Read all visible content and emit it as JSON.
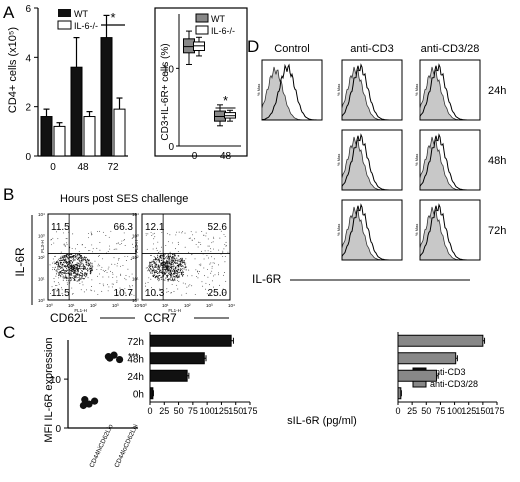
{
  "panel_letters": {
    "a": "A",
    "b": "B",
    "c": "C",
    "d": "D"
  },
  "chart_data": [
    {
      "id": "A1",
      "type": "bar",
      "categories": [
        "0",
        "48",
        "72"
      ],
      "series": [
        {
          "name": "WT",
          "color": "#111111",
          "values": [
            1.6,
            3.6,
            4.8
          ],
          "errors": [
            0.3,
            1.2,
            0.9
          ]
        },
        {
          "name": "IL-6-/-",
          "color": "#ffffff",
          "values": [
            1.2,
            1.6,
            1.9
          ],
          "errors": [
            0.15,
            0.2,
            0.45
          ]
        }
      ],
      "ylabel": "CD4+ cells (x10⁵)",
      "yticks": [
        "0",
        "2",
        "4",
        "6"
      ],
      "ylim": [
        0,
        6
      ],
      "significance": "*",
      "legend": "top-left"
    },
    {
      "id": "A2",
      "type": "boxplot",
      "categories": [
        "0",
        "48"
      ],
      "series": [
        {
          "name": "WT",
          "color": "#888888",
          "boxes": [
            [
              10.5,
              12,
              12.8,
              13.8,
              14.8
            ],
            [
              2.6,
              3.2,
              3.8,
              4.5,
              5.3
            ]
          ]
        },
        {
          "name": "IL-6-/-",
          "color": "#ffffff",
          "boxes": [
            [
              11.6,
              12.3,
              12.9,
              13.4,
              14.0
            ],
            [
              3.2,
              3.6,
              3.9,
              4.3,
              4.6
            ]
          ]
        }
      ],
      "ylabel": "CD3+IL-6R+ cells (%)",
      "yticks": [
        "0",
        "10"
      ],
      "ylim": [
        0,
        17
      ],
      "significance": "*",
      "legend": "top-right"
    },
    {
      "id": "B",
      "type": "scatter",
      "title": "Hours post SES challenge",
      "ylabel": "IL-6R",
      "fl_x": "FL1-H",
      "fl_y": "FL3-H",
      "plots": [
        {
          "xlabel": "CD62L",
          "quadrants": {
            "ul": "11.5",
            "ur": "66.3",
            "ll": "11.5",
            "lr": "10.7"
          }
        },
        {
          "xlabel": "CCR7",
          "quadrants": {
            "ul": "12.1",
            "ur": "52.6",
            "ll": "10.3",
            "lr": "25.0"
          }
        }
      ],
      "tick_labels": [
        "10⁰",
        "10¹",
        "10²",
        "10³",
        "10⁴"
      ]
    },
    {
      "id": "C",
      "type": "scatter",
      "ylabel": "MFI IL-6R expression",
      "categories": [
        "CD44hiCD62Llo",
        "CD44loCD62Lhi"
      ],
      "points": [
        [
          4.6,
          5.5,
          4.9,
          5.8
        ],
        [
          14.6,
          14.0,
          14.9,
          14.3
        ]
      ],
      "yticks": [
        "0",
        "10"
      ],
      "ylim": [
        0,
        18
      ],
      "significance": "***"
    },
    {
      "id": "D",
      "type": "histogram",
      "columns": [
        "Control",
        "anti-CD3",
        "anti-CD3/28"
      ],
      "rows": [
        "24h",
        "48h",
        "72h"
      ],
      "xlabel": "IL-6R",
      "y_axis_label": "% Max"
    },
    {
      "id": "E",
      "type": "bar",
      "orientation": "horizontal",
      "categories": [
        "72h",
        "48h",
        "24h",
        "0h"
      ],
      "series": [
        {
          "name": "anti-CD3",
          "color": "#111111",
          "values": [
            142,
            95,
            65,
            5
          ],
          "errors": [
            4,
            3,
            3,
            1
          ]
        },
        {
          "name": "anti-CD3/28",
          "color": "#888888",
          "values": [
            150,
            102,
            68,
            5
          ],
          "errors": [
            3,
            3,
            3,
            1
          ]
        }
      ],
      "xlabel": "sIL-6R (pg/ml)",
      "xticks": [
        "0",
        "25",
        "50",
        "75",
        "100",
        "125",
        "150",
        "175"
      ],
      "xlim": [
        0,
        175
      ],
      "legend": "bottom-right"
    }
  ]
}
